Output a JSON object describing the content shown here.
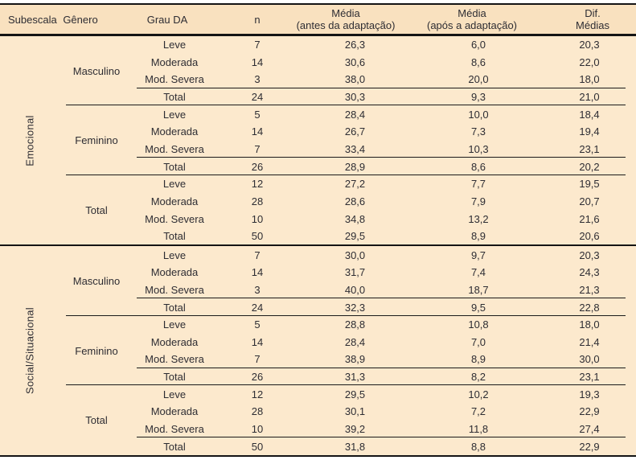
{
  "table": {
    "header": {
      "subescala": "Subescala",
      "genero": "Gênero",
      "grau_da": "Grau DA",
      "n": "n",
      "media_antes_line1": "Média",
      "media_antes_line2": "(antes da adaptação)",
      "media_apos_line1": "Média",
      "media_apos_line2": "(após a adaptação)",
      "dif_line1": "Dif.",
      "dif_line2": "Médias"
    },
    "sections": [
      {
        "label": "Emocional",
        "groups": [
          {
            "label": "Masculino",
            "divider_above_total": true,
            "rows": [
              {
                "grau": "Leve",
                "n": "7",
                "media_antes": "26,3",
                "media_apos": "6,0",
                "dif_medias": "20,3"
              },
              {
                "grau": "Moderada",
                "n": "14",
                "media_antes": "30,6",
                "media_apos": "8,6",
                "dif_medias": "22,0"
              },
              {
                "grau": "Mod. Severa",
                "n": "3",
                "media_antes": "38,0",
                "media_apos": "20,0",
                "dif_medias": "18,0"
              },
              {
                "grau": "Total",
                "n": "24",
                "media_antes": "30,3",
                "media_apos": "9,3",
                "dif_medias": "21,0"
              }
            ]
          },
          {
            "label": "Feminino",
            "divider_above_total": true,
            "rows": [
              {
                "grau": "Leve",
                "n": "5",
                "media_antes": "28,4",
                "media_apos": "10,0",
                "dif_medias": "18,4"
              },
              {
                "grau": "Moderada",
                "n": "14",
                "media_antes": "26,7",
                "media_apos": "7,3",
                "dif_medias": "19,4"
              },
              {
                "grau": "Mod. Severa",
                "n": "7",
                "media_antes": "33,4",
                "media_apos": "10,3",
                "dif_medias": "23,1"
              },
              {
                "grau": "Total",
                "n": "26",
                "media_antes": "28,9",
                "media_apos": "8,6",
                "dif_medias": "20,2"
              }
            ]
          },
          {
            "label": "Total",
            "divider_above_total": false,
            "rows": [
              {
                "grau": "Leve",
                "n": "12",
                "media_antes": "27,2",
                "media_apos": "7,7",
                "dif_medias": "19,5"
              },
              {
                "grau": "Moderada",
                "n": "28",
                "media_antes": "28,6",
                "media_apos": "7,9",
                "dif_medias": "20,7"
              },
              {
                "grau": "Mod. Severa",
                "n": "10",
                "media_antes": "34,8",
                "media_apos": "13,2",
                "dif_medias": "21,6"
              },
              {
                "grau": "Total",
                "n": "50",
                "media_antes": "29,5",
                "media_apos": "8,9",
                "dif_medias": "20,6"
              }
            ]
          }
        ]
      },
      {
        "label": "Social/Situacional",
        "groups": [
          {
            "label": "Masculino",
            "divider_above_total": true,
            "rows": [
              {
                "grau": "Leve",
                "n": "7",
                "media_antes": "30,0",
                "media_apos": "9,7",
                "dif_medias": "20,3"
              },
              {
                "grau": "Moderada",
                "n": "14",
                "media_antes": "31,7",
                "media_apos": "7,4",
                "dif_medias": "24,3"
              },
              {
                "grau": "Mod. Severa",
                "n": "3",
                "media_antes": "40,0",
                "media_apos": "18,7",
                "dif_medias": "21,3"
              },
              {
                "grau": "Total",
                "n": "24",
                "media_antes": "32,3",
                "media_apos": "9,5",
                "dif_medias": "22,8"
              }
            ]
          },
          {
            "label": "Feminino",
            "divider_above_total": true,
            "rows": [
              {
                "grau": "Leve",
                "n": "5",
                "media_antes": "28,8",
                "media_apos": "10,8",
                "dif_medias": "18,0"
              },
              {
                "grau": "Moderada",
                "n": "14",
                "media_antes": "28,4",
                "media_apos": "7,0",
                "dif_medias": "21,4"
              },
              {
                "grau": "Mod. Severa",
                "n": "7",
                "media_antes": "38,9",
                "media_apos": "8,9",
                "dif_medias": "30,0"
              },
              {
                "grau": "Total",
                "n": "26",
                "media_antes": "31,3",
                "media_apos": "8,2",
                "dif_medias": "23,1"
              }
            ]
          },
          {
            "label": "Total",
            "divider_above_total": true,
            "rows": [
              {
                "grau": "Leve",
                "n": "12",
                "media_antes": "29,5",
                "media_apos": "10,2",
                "dif_medias": "19,3"
              },
              {
                "grau": "Moderada",
                "n": "28",
                "media_antes": "30,1",
                "media_apos": "7,2",
                "dif_medias": "22,9"
              },
              {
                "grau": "Mod. Severa",
                "n": "10",
                "media_antes": "39,2",
                "media_apos": "11,8",
                "dif_medias": "27,4"
              },
              {
                "grau": "Total",
                "n": "50",
                "media_antes": "31,8",
                "media_apos": "8,8",
                "dif_medias": "22,9"
              }
            ]
          }
        ]
      }
    ],
    "colors": {
      "header_background": "#F9E1BF",
      "body_background": "#FCE9CD",
      "rule_color": "#141414",
      "text_color": "#2E2D33"
    }
  }
}
